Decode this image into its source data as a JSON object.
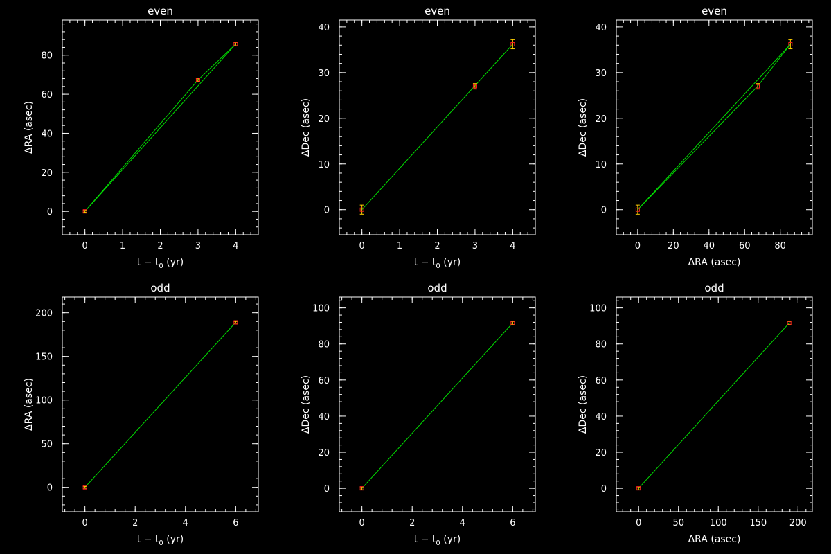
{
  "colors": {
    "background": "#000000",
    "axes": "#ffffff",
    "fit_line": "#00e000",
    "error_bar": "#ffd000",
    "marker": "#ff2020"
  },
  "chart_data": [
    {
      "type": "line",
      "title": "even",
      "xlabel": "t − t",
      "xlabel_sub": "0",
      "xlabel_suffix": " (yr)",
      "ylabel": "ΔRA (asec)",
      "xlim": [
        -0.6,
        4.6
      ],
      "ylim": [
        -12,
        98
      ],
      "xticks": [
        0,
        1,
        2,
        3,
        4
      ],
      "xtick_labels": [
        "0",
        "1",
        "2",
        "3",
        "4"
      ],
      "yticks": [
        0,
        20,
        40,
        60,
        80
      ],
      "ytick_labels": [
        "0",
        "20",
        "40",
        "60",
        "80"
      ],
      "points": [
        {
          "x": 0,
          "y": 0,
          "err": 0.5
        },
        {
          "x": 3,
          "y": 67.3,
          "err": 0.7
        },
        {
          "x": 4,
          "y": 85.7,
          "err": 0.8
        }
      ],
      "fit_lines": [
        [
          [
            0,
            0
          ],
          [
            4,
            85.7
          ]
        ],
        [
          [
            0,
            0
          ],
          [
            3,
            67.3
          ],
          [
            4,
            85.7
          ]
        ]
      ]
    },
    {
      "type": "line",
      "title": "even",
      "xlabel": "t − t",
      "xlabel_sub": "0",
      "xlabel_suffix": " (yr)",
      "ylabel": "ΔDec (asec)",
      "xlim": [
        -0.6,
        4.6
      ],
      "ylim": [
        -5.5,
        41.5
      ],
      "xticks": [
        0,
        1,
        2,
        3,
        4
      ],
      "xtick_labels": [
        "0",
        "1",
        "2",
        "3",
        "4"
      ],
      "yticks": [
        0,
        10,
        20,
        30,
        40
      ],
      "ytick_labels": [
        "0",
        "10",
        "20",
        "30",
        "40"
      ],
      "points": [
        {
          "x": 0,
          "y": 0,
          "err": 1.0
        },
        {
          "x": 3,
          "y": 27.0,
          "err": 0.6
        },
        {
          "x": 4,
          "y": 36.2,
          "err": 1.0
        }
      ],
      "fit_lines": [
        [
          [
            0,
            0
          ],
          [
            4,
            36.2
          ]
        ]
      ]
    },
    {
      "type": "scatter",
      "title": "even",
      "xlabel": "ΔRA (asec)",
      "ylabel": "ΔDec (asec)",
      "xlim": [
        -12,
        98
      ],
      "ylim": [
        -5.5,
        41.5
      ],
      "xticks": [
        0,
        20,
        40,
        60,
        80
      ],
      "xtick_labels": [
        "0",
        "20",
        "40",
        "60",
        "80"
      ],
      "yticks": [
        0,
        10,
        20,
        30,
        40
      ],
      "ytick_labels": [
        "0",
        "10",
        "20",
        "30",
        "40"
      ],
      "points": [
        {
          "x": 0,
          "y": 0,
          "err": 1.0
        },
        {
          "x": 67.3,
          "y": 27.0,
          "err": 0.6
        },
        {
          "x": 85.7,
          "y": 36.2,
          "err": 1.0
        }
      ],
      "fit_lines": [
        [
          [
            0,
            0
          ],
          [
            85.7,
            36.2
          ]
        ],
        [
          [
            0,
            0
          ],
          [
            67.3,
            27.0
          ],
          [
            85.7,
            36.2
          ]
        ]
      ]
    },
    {
      "type": "line",
      "title": "odd",
      "xlabel": "t − t",
      "xlabel_sub": "0",
      "xlabel_suffix": " (yr)",
      "ylabel": "ΔRA (asec)",
      "xlim": [
        -0.9,
        6.9
      ],
      "ylim": [
        -28,
        218
      ],
      "xticks": [
        0,
        2,
        4,
        6
      ],
      "xtick_labels": [
        "0",
        "2",
        "4",
        "6"
      ],
      "yticks": [
        0,
        50,
        100,
        150,
        200
      ],
      "ytick_labels": [
        "0",
        "50",
        "100",
        "150",
        "200"
      ],
      "points": [
        {
          "x": 0,
          "y": 0,
          "err": 1.0
        },
        {
          "x": 6,
          "y": 189,
          "err": 1.0
        }
      ],
      "fit_lines": [
        [
          [
            0,
            0
          ],
          [
            6,
            189
          ]
        ]
      ]
    },
    {
      "type": "line",
      "title": "odd",
      "xlabel": "t − t",
      "xlabel_sub": "0",
      "xlabel_suffix": " (yr)",
      "ylabel": "ΔDec (asec)",
      "xlim": [
        -0.9,
        6.9
      ],
      "ylim": [
        -13,
        106
      ],
      "xticks": [
        0,
        2,
        4,
        6
      ],
      "xtick_labels": [
        "0",
        "2",
        "4",
        "6"
      ],
      "yticks": [
        0,
        20,
        40,
        60,
        80,
        100
      ],
      "ytick_labels": [
        "0",
        "20",
        "40",
        "60",
        "80",
        "100"
      ],
      "points": [
        {
          "x": 0,
          "y": 0,
          "err": 0.8
        },
        {
          "x": 6,
          "y": 91.6,
          "err": 0.8
        }
      ],
      "fit_lines": [
        [
          [
            0,
            0
          ],
          [
            6,
            91.6
          ]
        ]
      ]
    },
    {
      "type": "scatter",
      "title": "odd",
      "xlabel": "ΔRA (asec)",
      "ylabel": "ΔDec (asec)",
      "xlim": [
        -28,
        218
      ],
      "ylim": [
        -13,
        106
      ],
      "xticks": [
        0,
        50,
        100,
        150,
        200
      ],
      "xtick_labels": [
        "0",
        "50",
        "100",
        "150",
        "200"
      ],
      "yticks": [
        0,
        20,
        40,
        60,
        80,
        100
      ],
      "ytick_labels": [
        "0",
        "20",
        "40",
        "60",
        "80",
        "100"
      ],
      "points": [
        {
          "x": 0,
          "y": 0,
          "err": 0.8
        },
        {
          "x": 189,
          "y": 91.6,
          "err": 0.8
        }
      ],
      "fit_lines": [
        [
          [
            0,
            0
          ],
          [
            189,
            91.6
          ]
        ]
      ]
    }
  ]
}
